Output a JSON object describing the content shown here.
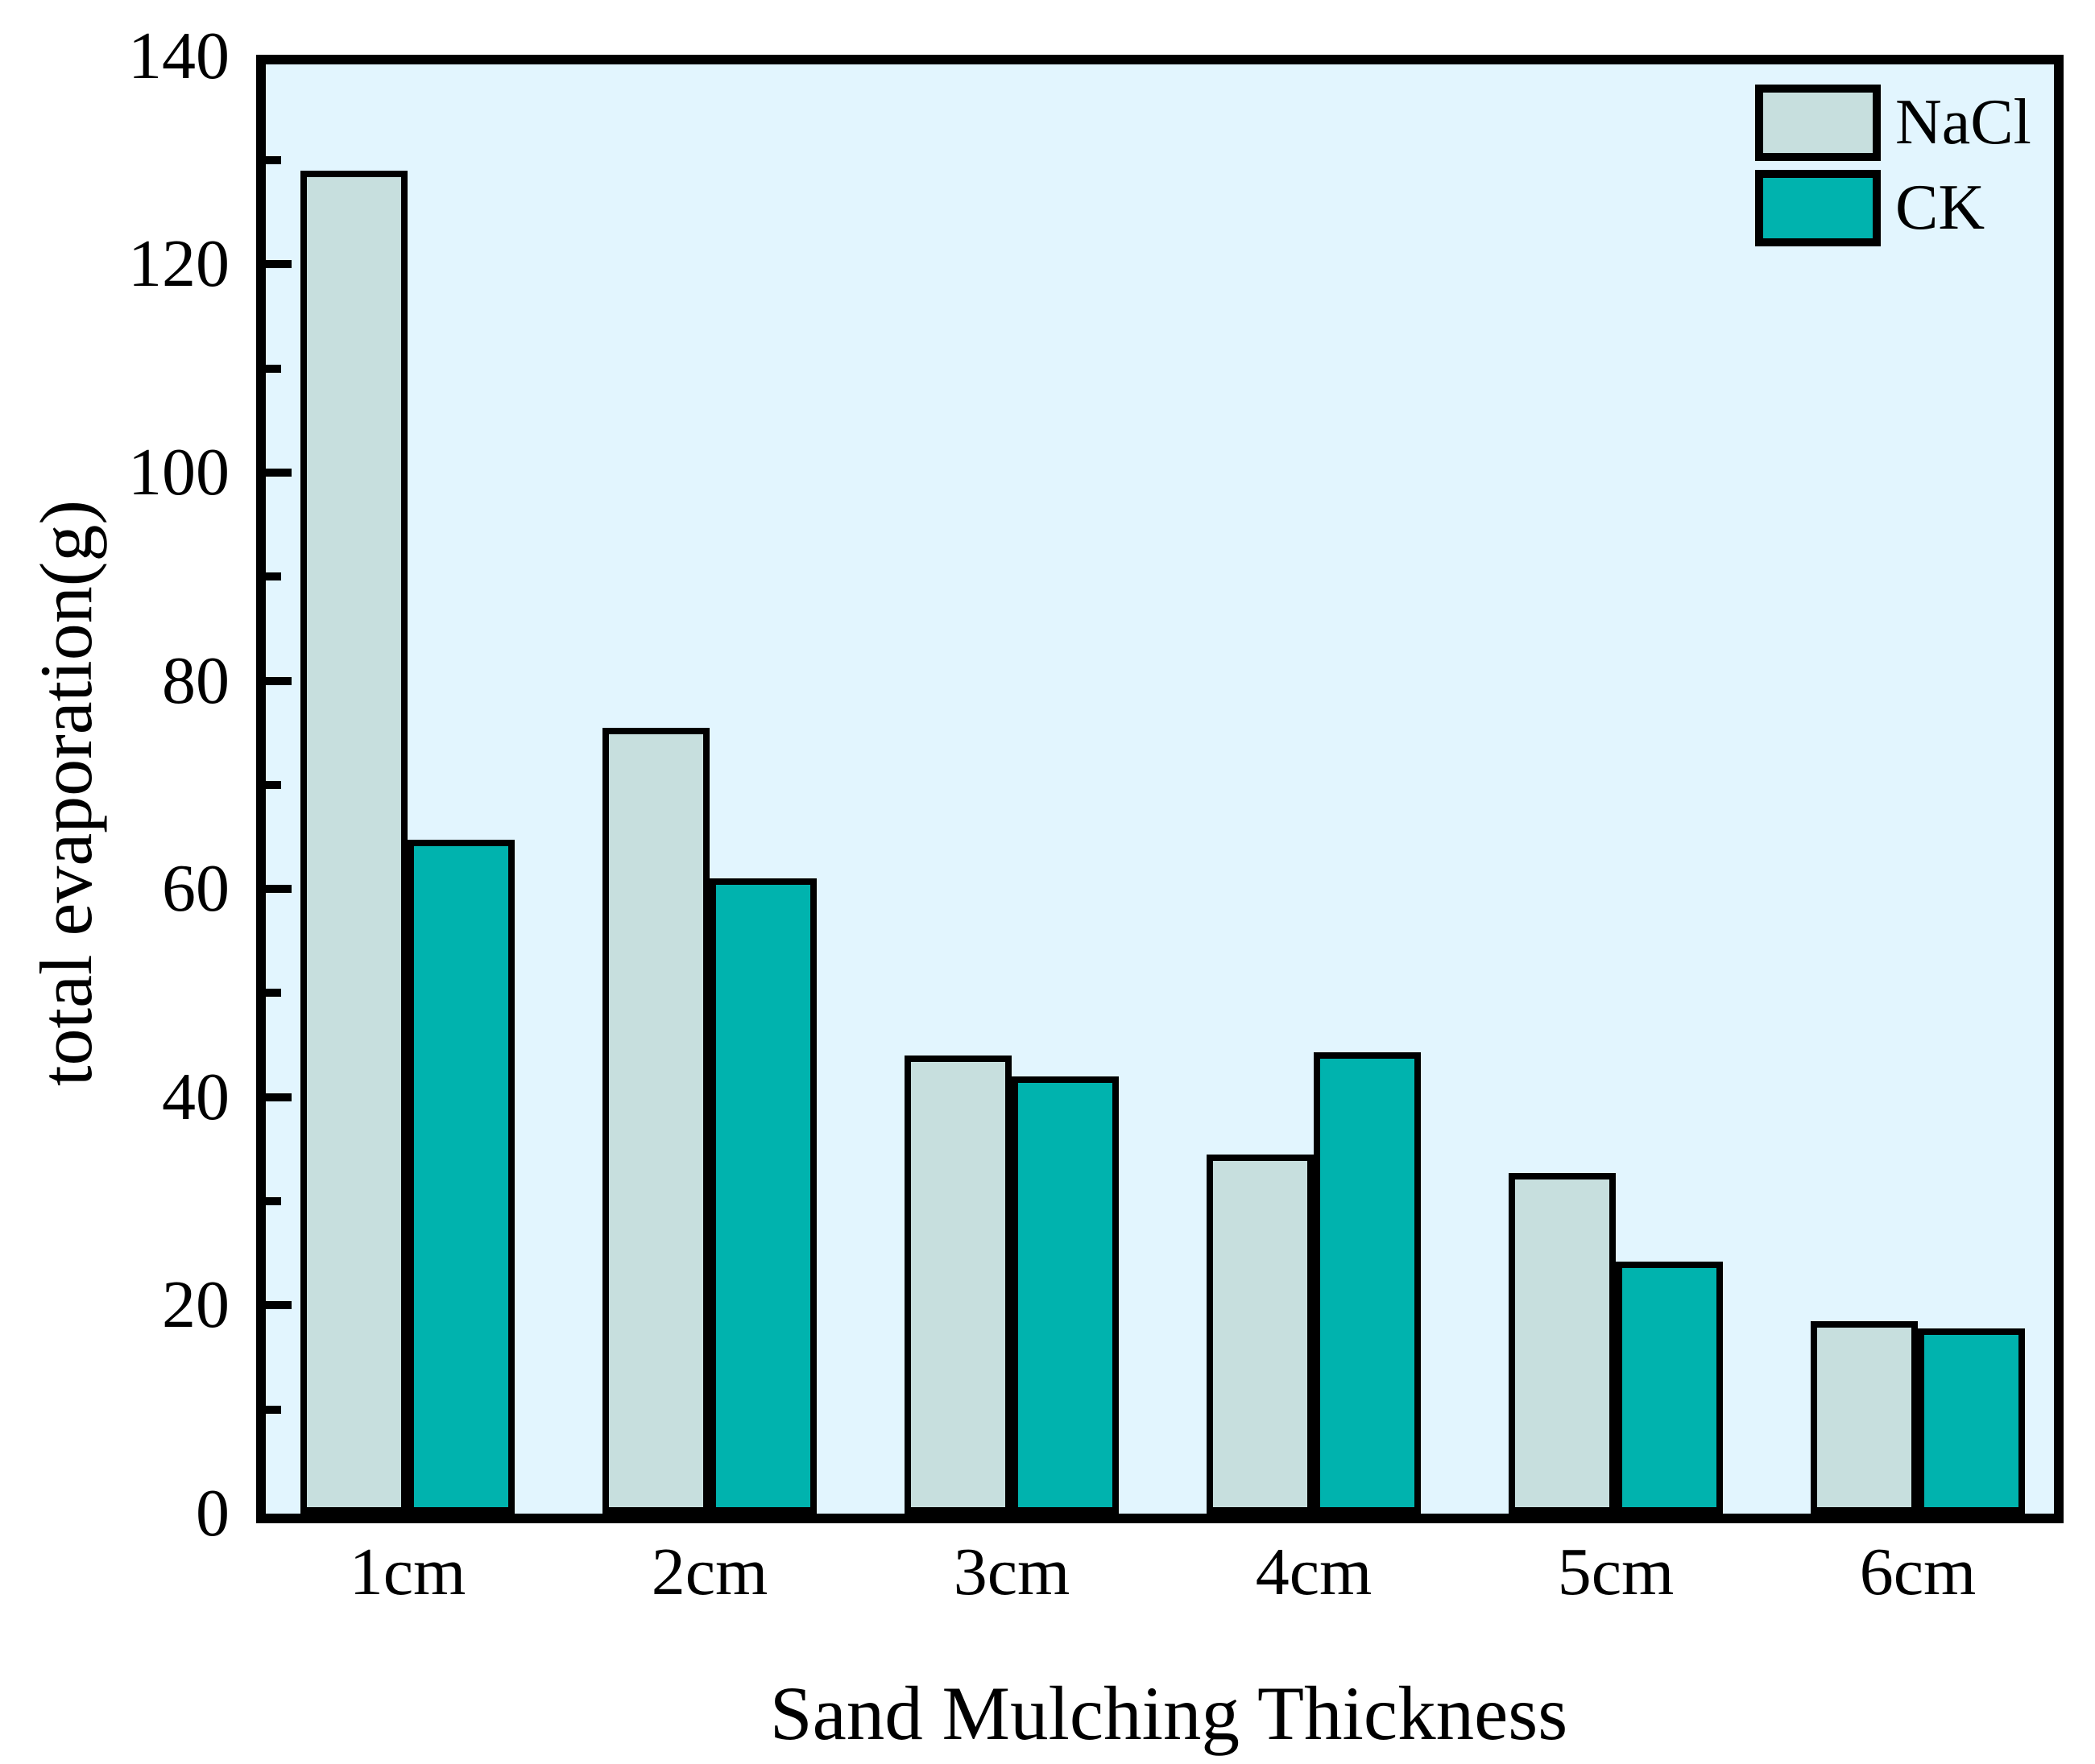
{
  "figure": {
    "kind": "grouped-bar-figure"
  },
  "chart_data": {
    "type": "bar",
    "title": "",
    "categories": [
      "1cm",
      "2cm",
      "3cm",
      "4cm",
      "5cm",
      "6cm"
    ],
    "series": [
      {
        "name": "NaCl",
        "color": "#c7dfde",
        "values": [
          129,
          75.5,
          44,
          34.5,
          32.7,
          18.5
        ]
      },
      {
        "name": "CK",
        "color": "#00b3ae",
        "values": [
          64.7,
          61,
          42,
          44.3,
          24.2,
          17.8
        ]
      }
    ],
    "xlabel": "Sand Mulching Thickness",
    "ylabel": "total evaporation(g)",
    "ylim": [
      0,
      140
    ],
    "y_major_ticks": [
      0,
      20,
      40,
      60,
      80,
      100,
      120,
      140
    ],
    "y_minor_step": 10,
    "grid": false,
    "legend_position": "top-right-inside",
    "colors": {
      "plot_background": "#e2f5fe",
      "page_background": "#ffffff",
      "axis": "#000000"
    }
  }
}
